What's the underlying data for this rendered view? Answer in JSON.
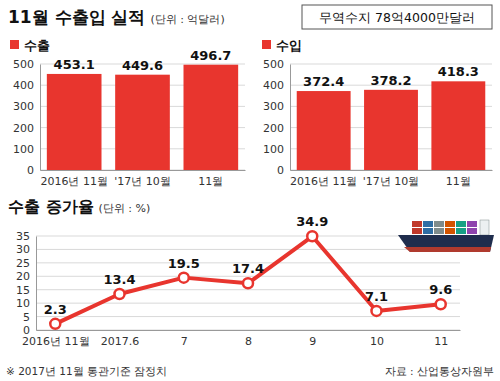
{
  "title": "11월 수출입 실적",
  "unit": "(단위 : 억달러)",
  "trade_balance": "무역수지 78억4000만달러",
  "footnote": "※ 2017년 11월 통관기준 잠정치",
  "source": "자료 : 산업통상자원부",
  "chart_data": [
    {
      "type": "bar",
      "title": "수출",
      "categories": [
        "2016년 11월",
        "'17년 10월",
        "11월"
      ],
      "values": [
        453.1,
        449.6,
        496.7
      ],
      "color": "#e8352e",
      "ylim": [
        0,
        500
      ],
      "yticks": [
        0,
        100,
        200,
        300,
        400,
        500
      ],
      "grid": true,
      "data_labels": true
    },
    {
      "type": "bar",
      "title": "수입",
      "categories": [
        "2016년 11월",
        "'17년 10월",
        "11월"
      ],
      "values": [
        372.4,
        378.2,
        418.3
      ],
      "color": "#e8352e",
      "ylim": [
        0,
        500
      ],
      "yticks": [
        0,
        100,
        200,
        300,
        400,
        500
      ],
      "grid": true,
      "data_labels": true
    },
    {
      "type": "line",
      "title": "수출 증가율",
      "subtitle": "(단위 : %)",
      "categories": [
        "2016년 11월",
        "2017.6",
        "7",
        "8",
        "9",
        "10",
        "11"
      ],
      "values": [
        2.3,
        13.4,
        19.5,
        17.4,
        34.9,
        7.1,
        9.6
      ],
      "color": "#e8352e",
      "ylim": [
        0,
        35
      ],
      "yticks": [
        0,
        5,
        10,
        15,
        20,
        25,
        30,
        35
      ],
      "grid": true,
      "data_labels": true,
      "marker": "circle"
    }
  ]
}
